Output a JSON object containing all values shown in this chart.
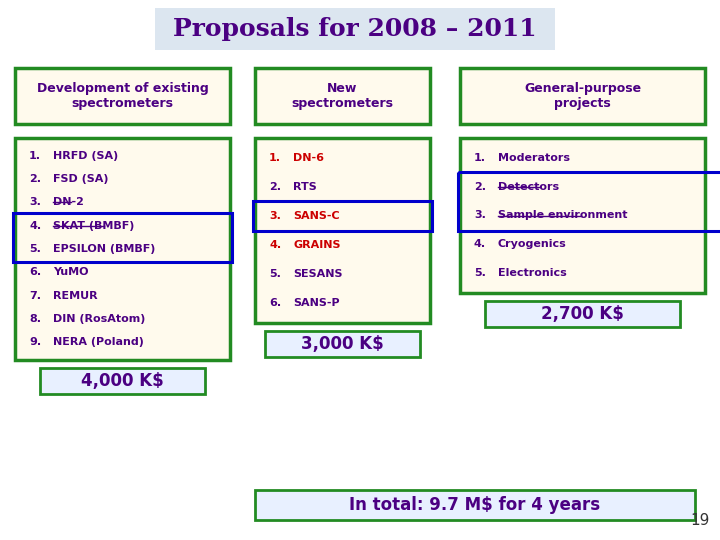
{
  "title": "Proposals for 2008 – 2011",
  "title_color": "#4B0082",
  "title_bg": "#dce6f0",
  "bg_color": "#ffffff",
  "slide_number": "19",
  "col1_header": "Development of existing\nspectrometers",
  "col2_header": "New\nspectrometers",
  "col3_header": "General-purpose\nprojects",
  "col1_items": [
    "HRFD (SA)",
    "FSD (SA)",
    "DN-2",
    "SKAT (BMBF)",
    "EPSILON (BMBF)",
    "YuMO",
    "REMUR",
    "DIN (RosAtom)",
    "NERA (Poland)"
  ],
  "col1_strikethrough": [
    3,
    4
  ],
  "col1_cost": "4,000 K$",
  "col2_items": [
    "DN-6",
    "RTS",
    "SANS-C",
    "GRAINS",
    "SESANS",
    "SANS-P"
  ],
  "col2_red": [
    0,
    2,
    3
  ],
  "col2_cost": "3,000 K$",
  "col3_items": [
    "Moderators",
    "Detectors",
    "Sample environment",
    "Cryogenics",
    "Electronics"
  ],
  "col3_strike": [
    1,
    2
  ],
  "col3_cost": "2,700 K$",
  "total_text": "In total: 9.7 M$ for 4 years",
  "box_fill": "#fffaed",
  "box_edge": "#228B22",
  "header_text_color": "#4B0082",
  "item_text_color": "#4B0082",
  "red_color": "#cc0000",
  "blue_box_color": "#0000cc",
  "cost_fill": "#e8f0ff",
  "cost_edge": "#228B22",
  "total_fill": "#e8f0ff",
  "total_edge": "#228B22"
}
